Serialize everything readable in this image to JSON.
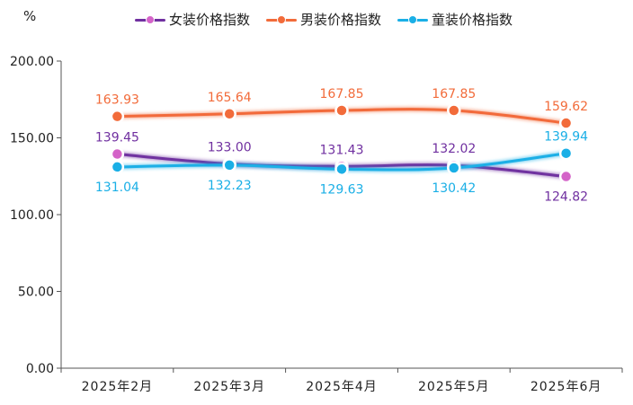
{
  "unit_label": "%",
  "chart_data": {
    "type": "line",
    "categories": [
      "2025年2月",
      "2025年3月",
      "2025年4月",
      "2025年5月",
      "2025年6月"
    ],
    "ylim": [
      0,
      200
    ],
    "yticks": [
      "0.00",
      "50.00",
      "100.00",
      "150.00",
      "200.00"
    ],
    "grid": false,
    "legend_position": "top",
    "series": [
      {
        "name": "女装价格指数",
        "color": "#7030a0",
        "marker_color": "#d463c8",
        "values": [
          139.45,
          133.0,
          131.43,
          132.02,
          124.82
        ],
        "labels": [
          "139.45",
          "133.00",
          "131.43",
          "132.02",
          "124.82"
        ]
      },
      {
        "name": "男装价格指数",
        "color": "#f26b3a",
        "marker_color": "#f26b3a",
        "values": [
          163.93,
          165.64,
          167.85,
          167.85,
          159.62
        ],
        "labels": [
          "163.93",
          "165.64",
          "167.85",
          "167.85",
          "159.62"
        ]
      },
      {
        "name": "童装价格指数",
        "color": "#1aafe6",
        "marker_color": "#1aafe6",
        "values": [
          131.04,
          132.23,
          129.63,
          130.42,
          139.94
        ],
        "labels": [
          "131.04",
          "132.23",
          "129.63",
          "130.42",
          "139.94"
        ]
      }
    ]
  }
}
